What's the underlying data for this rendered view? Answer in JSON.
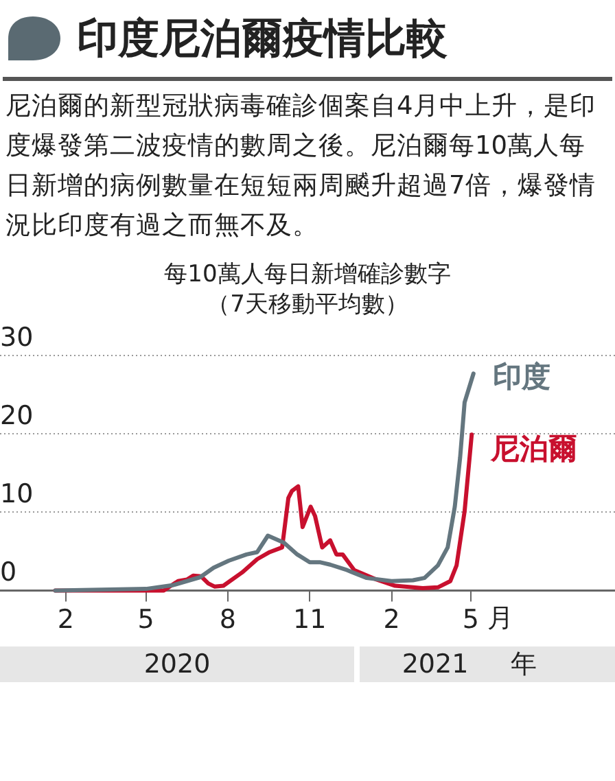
{
  "chart_data": {
    "type": "line",
    "title": "印度尼泊爾疫情比較",
    "subtitle": "尼泊爾的新型冠狀病毒確診個案自4月中上升，是印度爆發第二波疫情的數周之後。尼泊爾每10萬人每日新增的病例數量在短短兩周飇升超過7倍，爆發情況比印度有過之而無不及。",
    "annotations": [
      "每10萬人每日新增確診數字",
      "（7天移動平均數）",
      "2020",
      "2021",
      "年"
    ],
    "xlabel": "月",
    "x": [
      "2020-01-20",
      "2020-05-01",
      "2020-06-01",
      "2020-07-01",
      "2020-07-16",
      "2020-08-02",
      "2020-08-22",
      "2020-09-03",
      "2020-09-15",
      "2020-10-03",
      "2020-10-18",
      "2020-11-01",
      "2020-11-13",
      "2020-11-24",
      "2020-12-13",
      "2021-01-04",
      "2021-02-01",
      "2021-02-25",
      "2021-03-10",
      "2021-03-25",
      "2021-04-05",
      "2021-04-13",
      "2021-04-19",
      "2021-04-24",
      "2021-05-04"
    ],
    "series": [
      {
        "name": "印度",
        "color": "#64767f",
        "values": [
          0,
          0.2,
          0.7,
          1.7,
          2.9,
          3.8,
          4.6,
          4.9,
          7.0,
          6.1,
          4.6,
          3.6,
          3.6,
          3.3,
          2.6,
          1.6,
          1.2,
          1.3,
          1.6,
          3.2,
          5.5,
          10.7,
          17,
          24,
          27.7
        ]
      },
      {
        "name": "尼泊爾",
        "color": "#c8102e",
        "x": [
          "2020-01-20",
          "2020-05-21",
          "2020-06-06",
          "2020-06-16",
          "2020-06-23",
          "2020-07-02",
          "2020-07-10",
          "2020-07-17",
          "2020-07-27",
          "2020-08-17",
          "2020-09-03",
          "2020-09-17",
          "2020-10-01",
          "2020-10-08",
          "2020-10-12",
          "2020-10-19",
          "2020-10-24",
          "2020-11-02",
          "2020-11-07",
          "2020-11-15",
          "2020-11-24",
          "2020-12-01",
          "2020-12-08",
          "2020-12-21",
          "2021-01-15",
          "2021-02-05",
          "2021-03-08",
          "2021-03-25",
          "2021-04-08",
          "2021-04-15",
          "2021-04-24",
          "2021-05-02"
        ],
        "values": [
          0,
          0,
          1.2,
          1.4,
          1.9,
          1.8,
          0.9,
          0.5,
          0.6,
          2.3,
          4.0,
          4.9,
          5.5,
          11.8,
          12.7,
          13.3,
          8.1,
          10.7,
          9.5,
          5.5,
          6.4,
          4.6,
          4.6,
          2.6,
          1.4,
          0.6,
          0.3,
          0.4,
          1.2,
          3.2,
          10.1,
          19.9
        ]
      }
    ],
    "xlim": [
      "2019-11-19",
      "2021-10-10"
    ],
    "xticks": [
      {
        "value": "2020-02-01",
        "label": "2"
      },
      {
        "value": "2020-05-01",
        "label": "5"
      },
      {
        "value": "2020-08-01",
        "label": "8"
      },
      {
        "value": "2020-11-01",
        "label": "11"
      },
      {
        "value": "2021-02-01",
        "label": "2"
      },
      {
        "value": "2021-05-01",
        "label": "5"
      }
    ],
    "ylim": [
      0,
      30
    ],
    "yticks": [
      0,
      10,
      20,
      30
    ],
    "grid": "y",
    "legend": false,
    "marker": "none",
    "line_style": "solid"
  }
}
